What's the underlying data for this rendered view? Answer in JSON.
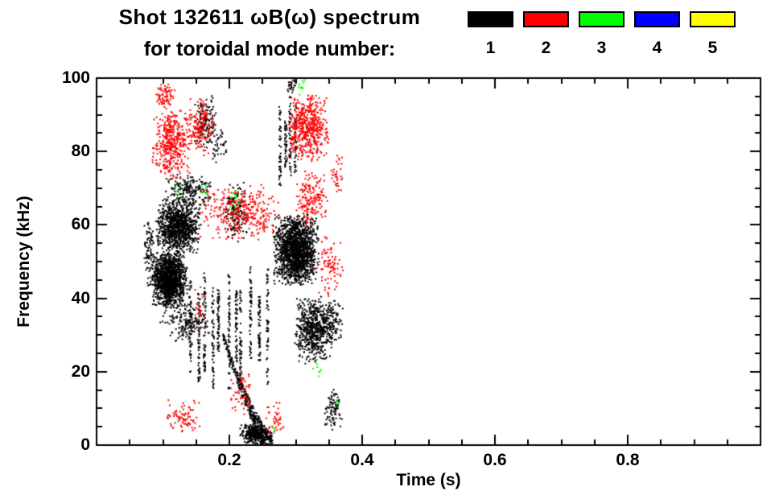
{
  "header": {
    "title_line1": "Shot 132611 ωB(ω) spectrum",
    "title_line2": "for toroidal mode number:"
  },
  "legend": {
    "items": [
      {
        "label": "1",
        "color": "#000000"
      },
      {
        "label": "2",
        "color": "#ff0000"
      },
      {
        "label": "3",
        "color": "#00ff00"
      },
      {
        "label": "4",
        "color": "#0000ff"
      },
      {
        "label": "5",
        "color": "#ffff00"
      }
    ]
  },
  "chart_data": {
    "type": "scatter",
    "subtype": "mode-spectrogram",
    "title": "Shot 132611 ωB(ω) spectrum for toroidal mode number: 1 2 3 4 5",
    "xlabel": "Time (s)",
    "ylabel": "Frequency (kHz)",
    "xlim": [
      0,
      1.0
    ],
    "ylim": [
      0,
      100
    ],
    "x_major_ticks": [
      0.2,
      0.4,
      0.6,
      0.8
    ],
    "x_tick_labels": [
      "0.2",
      "0.4",
      "0.6",
      "0.8"
    ],
    "x_minor_step": 0.05,
    "y_major_ticks": [
      0,
      20,
      40,
      60,
      80,
      100
    ],
    "y_tick_labels": [
      "0",
      "20",
      "40",
      "60",
      "80",
      "100"
    ],
    "y_minor_step": 5,
    "grid": false,
    "legend_position": "top-right",
    "frame_color": "#000000",
    "seed": 42,
    "clusters": [
      {
        "mode": 1,
        "shape": "blob",
        "t": [
          0.082,
          0.138
        ],
        "f": [
          37,
          53
        ],
        "n": 1400
      },
      {
        "mode": 1,
        "shape": "blob",
        "t": [
          0.088,
          0.158
        ],
        "f": [
          52,
          67
        ],
        "n": 1000
      },
      {
        "mode": 1,
        "shape": "blob",
        "t": [
          0.095,
          0.175
        ],
        "f": [
          27,
          40
        ],
        "n": 180
      },
      {
        "mode": 1,
        "shape": "blob",
        "t": [
          0.07,
          0.09
        ],
        "f": [
          42,
          62
        ],
        "n": 90
      },
      {
        "mode": 1,
        "shape": "blob",
        "t": [
          0.1,
          0.175
        ],
        "f": [
          64,
          74
        ],
        "n": 220
      },
      {
        "mode": 1,
        "shape": "vstreaks",
        "t": [
          0.135,
          0.26
        ],
        "f": [
          12,
          50
        ],
        "cols": 11,
        "n": 55
      },
      {
        "mode": 1,
        "shape": "blob",
        "t": [
          0.145,
          0.18
        ],
        "f": [
          80,
          96
        ],
        "n": 130
      },
      {
        "mode": 1,
        "shape": "blob",
        "t": [
          0.17,
          0.2
        ],
        "f": [
          76,
          88
        ],
        "n": 40
      },
      {
        "mode": 1,
        "shape": "blob",
        "t": [
          0.19,
          0.23
        ],
        "f": [
          55,
          72
        ],
        "n": 160
      },
      {
        "mode": 1,
        "shape": "chirp",
        "t": [
          0.19,
          0.265
        ],
        "f_start": 30,
        "f_end": 0,
        "n": 420
      },
      {
        "mode": 1,
        "shape": "blob",
        "t": [
          0.215,
          0.262
        ],
        "f": [
          0,
          6
        ],
        "n": 300
      },
      {
        "mode": 1,
        "shape": "blob",
        "t": [
          0.265,
          0.335
        ],
        "f": [
          43,
          63
        ],
        "n": 1700
      },
      {
        "mode": 1,
        "shape": "blob",
        "t": [
          0.298,
          0.356
        ],
        "f": [
          22,
          41
        ],
        "n": 600
      },
      {
        "mode": 1,
        "shape": "vstreaks",
        "t": [
          0.272,
          0.302
        ],
        "f": [
          68,
          95
        ],
        "cols": 4,
        "n": 45
      },
      {
        "mode": 1,
        "shape": "blob",
        "t": [
          0.285,
          0.3
        ],
        "f": [
          96,
          100
        ],
        "n": 25
      },
      {
        "mode": 1,
        "shape": "blob",
        "t": [
          0.336,
          0.372
        ],
        "f": [
          27,
          41
        ],
        "n": 120
      },
      {
        "mode": 1,
        "shape": "blob",
        "t": [
          0.34,
          0.372
        ],
        "f": [
          4,
          16
        ],
        "n": 90
      },
      {
        "mode": 2,
        "shape": "blob",
        "t": [
          0.083,
          0.142
        ],
        "f": [
          72,
          92
        ],
        "n": 420
      },
      {
        "mode": 2,
        "shape": "blob",
        "t": [
          0.088,
          0.118
        ],
        "f": [
          92,
          99
        ],
        "n": 70
      },
      {
        "mode": 2,
        "shape": "blob",
        "t": [
          0.135,
          0.18
        ],
        "f": [
          78,
          96
        ],
        "n": 150
      },
      {
        "mode": 2,
        "shape": "blob",
        "t": [
          0.155,
          0.28
        ],
        "f": [
          55,
          72
        ],
        "n": 330
      },
      {
        "mode": 2,
        "shape": "blob",
        "t": [
          0.285,
          0.352
        ],
        "f": [
          77,
          96
        ],
        "n": 520
      },
      {
        "mode": 2,
        "shape": "blob",
        "t": [
          0.3,
          0.35
        ],
        "f": [
          58,
          76
        ],
        "n": 170
      },
      {
        "mode": 2,
        "shape": "blob",
        "t": [
          0.33,
          0.372
        ],
        "f": [
          40,
          57
        ],
        "n": 90
      },
      {
        "mode": 2,
        "shape": "blob",
        "t": [
          0.1,
          0.158
        ],
        "f": [
          3,
          13
        ],
        "n": 80
      },
      {
        "mode": 2,
        "shape": "blob",
        "t": [
          0.198,
          0.24
        ],
        "f": [
          8,
          20
        ],
        "n": 55
      },
      {
        "mode": 2,
        "shape": "blob",
        "t": [
          0.252,
          0.285
        ],
        "f": [
          2,
          12
        ],
        "n": 40
      },
      {
        "mode": 2,
        "shape": "blob",
        "t": [
          0.352,
          0.372
        ],
        "f": [
          68,
          80
        ],
        "n": 35
      },
      {
        "mode": 2,
        "shape": "blob",
        "t": [
          0.145,
          0.165
        ],
        "f": [
          30,
          45
        ],
        "n": 20
      },
      {
        "mode": 3,
        "shape": "blob",
        "t": [
          0.197,
          0.218
        ],
        "f": [
          63,
          70
        ],
        "n": 14
      },
      {
        "mode": 3,
        "shape": "blob",
        "t": [
          0.302,
          0.318
        ],
        "f": [
          95,
          100
        ],
        "n": 10
      },
      {
        "mode": 3,
        "shape": "blob",
        "t": [
          0.325,
          0.342
        ],
        "f": [
          17,
          24
        ],
        "n": 8
      },
      {
        "mode": 3,
        "shape": "blob",
        "t": [
          0.155,
          0.168
        ],
        "f": [
          66,
          71
        ],
        "n": 6
      },
      {
        "mode": 3,
        "shape": "blob",
        "t": [
          0.118,
          0.128
        ],
        "f": [
          67,
          72
        ],
        "n": 5
      },
      {
        "mode": 3,
        "shape": "blob",
        "t": [
          0.258,
          0.272
        ],
        "f": [
          2,
          7
        ],
        "n": 5
      },
      {
        "mode": 3,
        "shape": "blob",
        "t": [
          0.36,
          0.368
        ],
        "f": [
          10,
          14
        ],
        "n": 4
      }
    ]
  }
}
